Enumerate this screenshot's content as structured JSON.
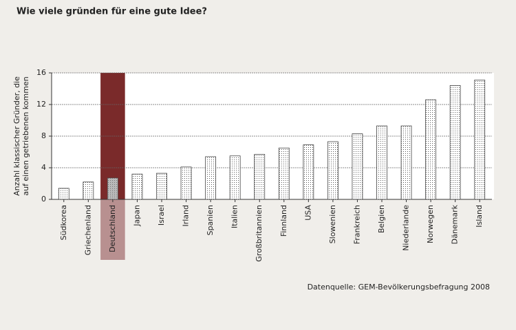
{
  "chart_data": {
    "type": "bar",
    "title": "Wie viele gründen für eine gute Idee?",
    "ylabel": [
      "Anzahl klassischer Gründer, die",
      "auf einen getriebenen kommen"
    ],
    "source": "Datenquelle: GEM-Bevölkerungsbefragung 2008",
    "categories": [
      "Südkorea",
      "Griechenland",
      "Deutschland",
      "Japan",
      "Israel",
      "Irland",
      "Spanien",
      "Italien",
      "Großbritannien",
      "Finnland",
      "USA",
      "Slowenien",
      "Frankreich",
      "Belgien",
      "Niederlande",
      "Norwegen",
      "Dänemark",
      "Island"
    ],
    "values": [
      1.4,
      2.2,
      2.7,
      3.2,
      3.3,
      4.1,
      5.4,
      5.5,
      5.7,
      6.5,
      6.9,
      7.3,
      8.3,
      9.3,
      9.3,
      12.6,
      14.4,
      15.1
    ],
    "color": "#444444",
    "highlight": {
      "index": 2,
      "color": "#7a2a2a",
      "label_color": "#b89090",
      "bar_color": "#8a8a8a"
    },
    "ylim": [
      0,
      16
    ],
    "yticks": [
      0,
      4,
      8,
      12,
      16
    ],
    "grid": true
  }
}
